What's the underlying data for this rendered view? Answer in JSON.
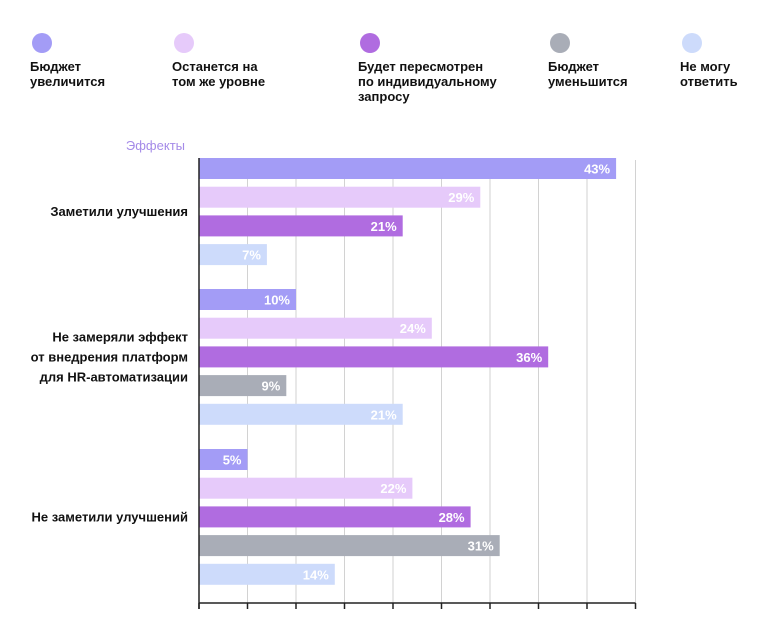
{
  "chart_data": {
    "type": "bar",
    "orientation": "horizontal",
    "y_title": "Эффекты",
    "xlim": [
      0,
      45
    ],
    "grid": true,
    "legend_position": "top",
    "series": [
      {
        "name": "Бюджет\nувеличится",
        "color": "#a39cf6"
      },
      {
        "name": "Останется на\nтом же уровне",
        "color": "#e6cafa"
      },
      {
        "name": "Будет пересмотрен\nпо индивидуальному\nзапросу",
        "color": "#b06ce0"
      },
      {
        "name": "Бюджет\nуменьшится",
        "color": "#a9adb7"
      },
      {
        "name": "Не могу\nответить",
        "color": "#cddbfb"
      }
    ],
    "categories": [
      {
        "label": "Заметили улучшения",
        "bars": [
          {
            "series": 0,
            "value": 43,
            "label": "43%"
          },
          {
            "series": 1,
            "value": 29,
            "label": "29%"
          },
          {
            "series": 2,
            "value": 21,
            "label": "21%"
          },
          {
            "series": 4,
            "value": 7,
            "label": "7%"
          }
        ]
      },
      {
        "label": "Не замеряли эффект\nот внедрения платформ\nдля HR-автоматизации",
        "bars": [
          {
            "series": 0,
            "value": 10,
            "label": "10%"
          },
          {
            "series": 1,
            "value": 24,
            "label": "24%"
          },
          {
            "series": 2,
            "value": 36,
            "label": "36%"
          },
          {
            "series": 3,
            "value": 9,
            "label": "9%"
          },
          {
            "series": 4,
            "value": 21,
            "label": "21%"
          }
        ]
      },
      {
        "label": "Не заметили улучшений",
        "bars": [
          {
            "series": 0,
            "value": 5,
            "label": "5%"
          },
          {
            "series": 1,
            "value": 22,
            "label": "22%"
          },
          {
            "series": 2,
            "value": 28,
            "label": "28%"
          },
          {
            "series": 3,
            "value": 31,
            "label": "31%"
          },
          {
            "series": 4,
            "value": 14,
            "label": "14%"
          }
        ]
      }
    ]
  }
}
